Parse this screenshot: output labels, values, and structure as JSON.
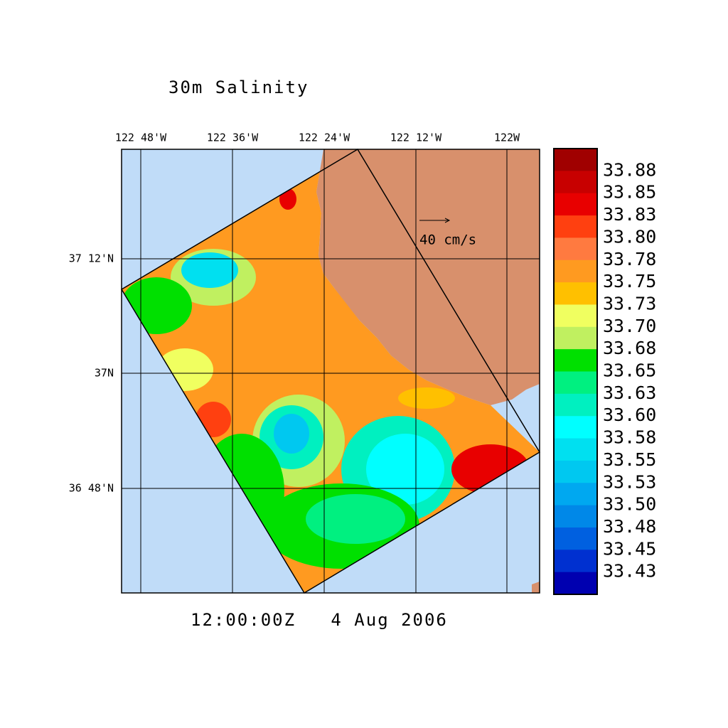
{
  "title": "30m Salinity",
  "lon_labels": [
    "122 48'W",
    "122 36'W",
    "122 24'W",
    "122 12'W",
    "122W"
  ],
  "lat_labels": [
    "37 12'N",
    "37N",
    "36 48'N"
  ],
  "reference_vector": "40 cm/s",
  "timestamp": "12:00:00Z   4 Aug 2006",
  "colorbar": {
    "labels": [
      "33.88",
      "33.85",
      "33.83",
      "33.80",
      "33.78",
      "33.75",
      "33.73",
      "33.70",
      "33.68",
      "33.65",
      "33.63",
      "33.60",
      "33.58",
      "33.55",
      "33.53",
      "33.50",
      "33.48",
      "33.45",
      "33.43"
    ],
    "colors": [
      "#a00000",
      "#c80000",
      "#e80000",
      "#ff4010",
      "#ff7a40",
      "#ff9a20",
      "#ffc000",
      "#f0ff60",
      "#c0f060",
      "#00e000",
      "#00f080",
      "#00f0c0",
      "#00ffff",
      "#00e0f0",
      "#00c8f0",
      "#00a8f0",
      "#0088e8",
      "#0060e0",
      "#0030d0",
      "#0000b0"
    ]
  }
}
